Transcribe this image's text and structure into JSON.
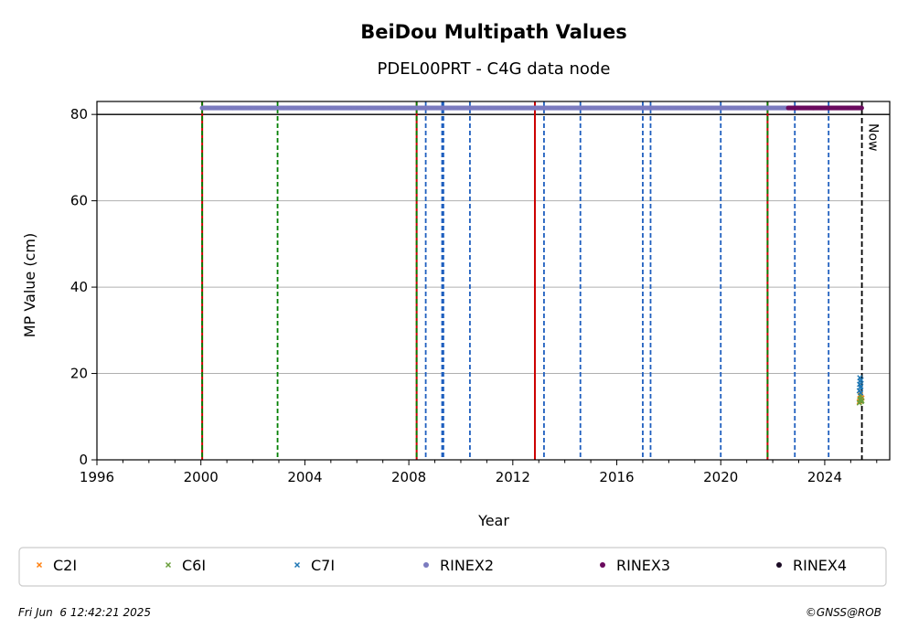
{
  "chart_data": {
    "type": "scatter",
    "title": "BeiDou Multipath Values",
    "subtitle": "PDEL00PRT - C4G data node",
    "xlabel": "Year",
    "ylabel": "MP Value (cm)",
    "xlim": [
      1996,
      2026.5
    ],
    "ylim": [
      0,
      83
    ],
    "x_ticks": [
      1996,
      2000,
      2004,
      2008,
      2012,
      2016,
      2020,
      2024
    ],
    "x_tick_labels": [
      "1996",
      "2000",
      "2004",
      "2008",
      "2012",
      "2016",
      "2020",
      "2024"
    ],
    "y_ticks": [
      0,
      20,
      40,
      60,
      80
    ],
    "y_tick_labels": [
      "0",
      "20",
      "40",
      "60",
      "80"
    ],
    "grid": "horizontal",
    "reference_line": {
      "y": 80,
      "color": "#000000"
    },
    "now_line": {
      "x": 2025.43,
      "label": "Now",
      "color": "#000000"
    },
    "event_lines": {
      "green_dashed": [
        2000.05,
        2002.95,
        2008.3,
        2021.8
      ],
      "blue_dashed": [
        2008.65,
        2009.28,
        2009.33,
        2010.35,
        2013.2,
        2014.6,
        2017.0,
        2017.3,
        2020.0,
        2022.85,
        2024.15
      ],
      "red_solid": [
        2000.05,
        2008.3,
        2012.85,
        2021.8
      ],
      "colors": {
        "green": "#008000",
        "blue": "#1f5fbf",
        "red": "#cc0000"
      }
    },
    "series": [
      {
        "name": "C2I",
        "color": "#ff7f0e",
        "marker": "x",
        "x": [
          2025.33,
          2025.35,
          2025.37,
          2025.39,
          2025.41,
          2025.43
        ],
        "y": [
          13.5,
          14.2,
          15.0,
          14.6,
          13.8,
          14.3
        ]
      },
      {
        "name": "C6I",
        "color": "#6a9f3c",
        "marker": "x",
        "x": [
          2025.33,
          2025.35,
          2025.37,
          2025.39,
          2025.41,
          2025.43
        ],
        "y": [
          13.2,
          13.9,
          14.8,
          14.1,
          13.5,
          13.7
        ]
      },
      {
        "name": "C7I",
        "color": "#1f77b4",
        "marker": "x",
        "x": [
          2025.33,
          2025.34,
          2025.35,
          2025.36,
          2025.37,
          2025.38,
          2025.39,
          2025.4
        ],
        "y": [
          16.0,
          17.5,
          19.0,
          18.2,
          16.8,
          15.5,
          17.0,
          18.5
        ]
      },
      {
        "name": "RINEX2",
        "color": "#7b7bbf",
        "marker": "o",
        "x_range": [
          2000.05,
          2022.6
        ],
        "gaps": [
          [
            2002.9,
            2003.0
          ]
        ],
        "y": 81.5
      },
      {
        "name": "RINEX3",
        "color": "#6a0a5e",
        "marker": "o",
        "x_range": [
          2022.6,
          2025.43
        ],
        "y": 81.5
      },
      {
        "name": "RINEX4",
        "color": "#1a0a24",
        "marker": "o",
        "x": [],
        "y": []
      }
    ],
    "legend": {
      "placement": "bottom"
    }
  },
  "footer": {
    "timestamp": "Fri Jun  6 12:42:21 2025",
    "credit": "©GNSS@ROB"
  }
}
